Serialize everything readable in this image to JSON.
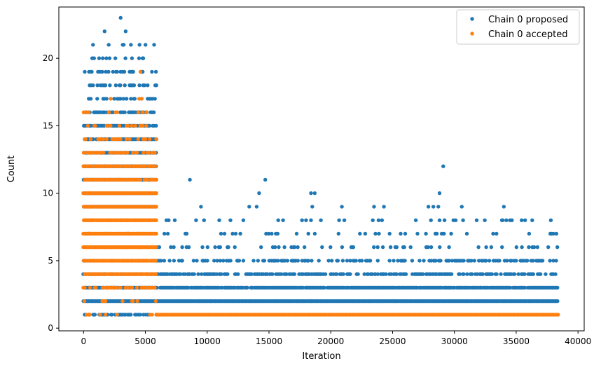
{
  "chart_data": {
    "type": "scatter",
    "title": "",
    "xlabel": "Iteration",
    "ylabel": "Count",
    "xlim": [
      -2000,
      40500
    ],
    "ylim": [
      -0.2,
      23.8
    ],
    "xticks": [
      0,
      5000,
      10000,
      15000,
      20000,
      25000,
      30000,
      35000,
      40000
    ],
    "yticks": [
      0,
      5,
      10,
      15,
      20
    ],
    "grid": false,
    "legend_position": "top-right",
    "series": [
      {
        "name": "Chain 0 proposed",
        "color": "#1f77b4",
        "marker": "circle",
        "bands": [
          {
            "y": 1,
            "x_start": 0,
            "x_end": 5900,
            "density": 0.5
          },
          {
            "y": 2,
            "x_start": 0,
            "x_end": 38400,
            "density": 1.0
          },
          {
            "y": 3,
            "x_start": 0,
            "x_end": 38400,
            "density": 0.9
          },
          {
            "y": 4,
            "x_start": 0,
            "x_end": 38400,
            "density": 0.6
          },
          {
            "y": 5,
            "x_start": 0,
            "x_end": 38400,
            "density": 0.35
          },
          {
            "y": 6,
            "x_start": 0,
            "x_end": 38400,
            "density": 0.15
          },
          {
            "y": 7,
            "x_start": 0,
            "x_end": 38400,
            "density": 0.08
          },
          {
            "y": 8,
            "x_start": 0,
            "x_end": 38400,
            "density": 0.05
          },
          {
            "y": 9,
            "x_start": 0,
            "x_end": 5900,
            "density": 1.0
          },
          {
            "y": 10,
            "x_start": 0,
            "x_end": 5900,
            "density": 1.0
          },
          {
            "y": 11,
            "x_start": 0,
            "x_end": 5900,
            "density": 1.0
          },
          {
            "y": 12,
            "x_start": 0,
            "x_end": 5900,
            "density": 1.0
          },
          {
            "y": 13,
            "x_start": 0,
            "x_end": 5900,
            "density": 1.0
          },
          {
            "y": 14,
            "x_start": 0,
            "x_end": 5900,
            "density": 0.8
          },
          {
            "y": 15,
            "x_start": 0,
            "x_end": 5900,
            "density": 0.7
          },
          {
            "y": 16,
            "x_start": 0,
            "x_end": 5900,
            "density": 0.5
          },
          {
            "y": 17,
            "x_start": 0,
            "x_end": 5900,
            "density": 0.4
          },
          {
            "y": 18,
            "x_start": 0,
            "x_end": 5900,
            "density": 0.3
          },
          {
            "y": 19,
            "x_start": 0,
            "x_end": 5900,
            "density": 0.2
          },
          {
            "y": 20,
            "x_start": 0,
            "x_end": 5900,
            "density": 0.15
          },
          {
            "y": 21,
            "x_start": 0,
            "x_end": 5900,
            "density": 0.1
          },
          {
            "y": 22,
            "x_start": 0,
            "x_end": 5900,
            "density": 0.05
          }
        ],
        "points": [
          [
            3000,
            23
          ],
          [
            8600,
            11
          ],
          [
            14700,
            11
          ],
          [
            29100,
            12
          ],
          [
            14200,
            10
          ],
          [
            18400,
            10
          ],
          [
            18700,
            10
          ],
          [
            28800,
            10
          ],
          [
            9500,
            9
          ],
          [
            13400,
            9
          ],
          [
            14000,
            9
          ],
          [
            18500,
            9
          ],
          [
            20900,
            9
          ],
          [
            23500,
            9
          ],
          [
            24300,
            9
          ],
          [
            27900,
            9
          ],
          [
            28300,
            9
          ],
          [
            28700,
            9
          ],
          [
            30600,
            9
          ],
          [
            34000,
            9
          ],
          [
            9100,
            8
          ],
          [
            18000,
            8
          ],
          [
            18400,
            8
          ],
          [
            19200,
            8
          ],
          [
            21100,
            8
          ],
          [
            23400,
            8
          ],
          [
            28100,
            8
          ],
          [
            28800,
            8
          ],
          [
            29200,
            8
          ],
          [
            30100,
            8
          ],
          [
            30700,
            8
          ],
          [
            33900,
            8
          ],
          [
            34200,
            8
          ],
          [
            34500,
            8
          ],
          [
            37800,
            8
          ]
        ]
      },
      {
        "name": "Chain 0 accepted",
        "color": "#ff7f0e",
        "marker": "circle",
        "bands": [
          {
            "y": 1,
            "x_start": 0,
            "x_end": 5900,
            "density": 0.15
          },
          {
            "y": 1,
            "x_start": 5900,
            "x_end": 38400,
            "density": 1.0
          },
          {
            "y": 2,
            "x_start": 0,
            "x_end": 5900,
            "density": 0.15
          },
          {
            "y": 3,
            "x_start": 0,
            "x_end": 5900,
            "density": 0.5
          },
          {
            "y": 4,
            "x_start": 0,
            "x_end": 5900,
            "density": 0.8
          },
          {
            "y": 5,
            "x_start": 0,
            "x_end": 5900,
            "density": 1.0
          },
          {
            "y": 6,
            "x_start": 0,
            "x_end": 5900,
            "density": 1.0
          },
          {
            "y": 7,
            "x_start": 0,
            "x_end": 5900,
            "density": 1.0
          },
          {
            "y": 8,
            "x_start": 0,
            "x_end": 5900,
            "density": 1.0
          },
          {
            "y": 9,
            "x_start": 0,
            "x_end": 5900,
            "density": 1.0
          },
          {
            "y": 10,
            "x_start": 0,
            "x_end": 5900,
            "density": 1.0
          },
          {
            "y": 11,
            "x_start": 0,
            "x_end": 5900,
            "density": 0.8
          },
          {
            "y": 12,
            "x_start": 0,
            "x_end": 5900,
            "density": 0.7
          },
          {
            "y": 13,
            "x_start": 0,
            "x_end": 5900,
            "density": 0.5
          },
          {
            "y": 14,
            "x_start": 0,
            "x_end": 5900,
            "density": 0.3
          },
          {
            "y": 15,
            "x_start": 0,
            "x_end": 5900,
            "density": 0.2
          },
          {
            "y": 16,
            "x_start": 0,
            "x_end": 5900,
            "density": 0.1
          }
        ],
        "points": [
          [
            4600,
            19
          ],
          [
            4500,
            17
          ],
          [
            4700,
            17
          ],
          [
            2200,
            17
          ],
          [
            2600,
            16
          ]
        ]
      }
    ]
  }
}
